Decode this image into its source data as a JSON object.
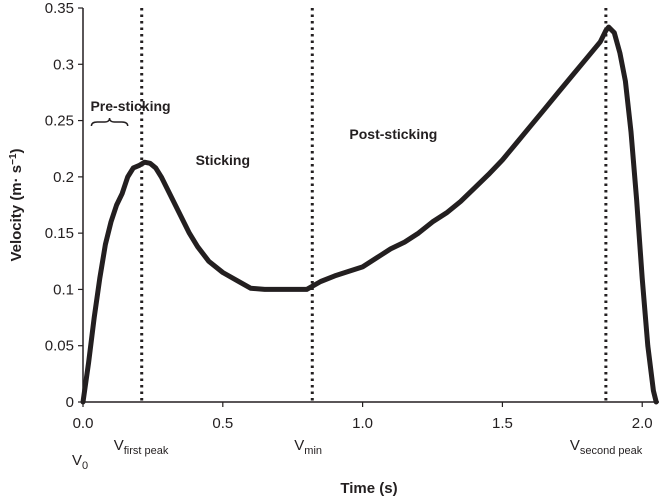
{
  "chart_data": {
    "type": "line",
    "title": "",
    "xlabel": "Time (s)",
    "ylabel": "Velocity (m· s",
    "ylabel_superscript": "−1",
    "ylabel_close": ")",
    "xlim": [
      0.0,
      2.06
    ],
    "ylim": [
      0.0,
      0.35
    ],
    "x_ticks": [
      0.0,
      0.5,
      1.0,
      1.5,
      2.0
    ],
    "x_tick_labels": [
      "0.0",
      "0.5",
      "1.0",
      "1.5",
      "2.0"
    ],
    "y_ticks": [
      0,
      0.05,
      0.1,
      0.15,
      0.2,
      0.25,
      0.3,
      0.35
    ],
    "y_tick_labels": [
      "0",
      "0.05",
      "0.1",
      "0.15",
      "0.2",
      "0.25",
      "0.3",
      "0.35"
    ],
    "grid": false,
    "legend": "none",
    "line_color": "#231f20",
    "series": [
      {
        "x": [
          0.0,
          0.02,
          0.04,
          0.06,
          0.08,
          0.1,
          0.12,
          0.14,
          0.16,
          0.18,
          0.2,
          0.22,
          0.24,
          0.26,
          0.28,
          0.3,
          0.32,
          0.35,
          0.38,
          0.41,
          0.45,
          0.5,
          0.55,
          0.6,
          0.65,
          0.7,
          0.75,
          0.8,
          0.85,
          0.9,
          0.95,
          1.0,
          1.05,
          1.1,
          1.15,
          1.2,
          1.25,
          1.3,
          1.35,
          1.4,
          1.45,
          1.5,
          1.55,
          1.6,
          1.65,
          1.7,
          1.75,
          1.8,
          1.85,
          1.87,
          1.88,
          1.9,
          1.92,
          1.94,
          1.96,
          1.98,
          2.0,
          2.02,
          2.04,
          2.05
        ],
        "y": [
          0.0,
          0.035,
          0.075,
          0.11,
          0.14,
          0.16,
          0.175,
          0.185,
          0.2,
          0.208,
          0.21,
          0.213,
          0.212,
          0.208,
          0.2,
          0.19,
          0.18,
          0.165,
          0.15,
          0.138,
          0.125,
          0.115,
          0.108,
          0.101,
          0.1,
          0.1,
          0.1,
          0.1,
          0.107,
          0.112,
          0.116,
          0.12,
          0.128,
          0.136,
          0.142,
          0.15,
          0.16,
          0.168,
          0.178,
          0.19,
          0.202,
          0.215,
          0.23,
          0.245,
          0.26,
          0.275,
          0.29,
          0.305,
          0.32,
          0.33,
          0.333,
          0.328,
          0.31,
          0.285,
          0.24,
          0.18,
          0.11,
          0.05,
          0.01,
          0.0
        ]
      }
    ],
    "markers": [
      {
        "x": 0.21,
        "label": "V",
        "sub": "first peak"
      },
      {
        "x": 0.82,
        "label": "V",
        "sub": "min"
      },
      {
        "x": 1.87,
        "label": "V",
        "sub": "second peak"
      }
    ],
    "v0_label": {
      "label": "V",
      "sub": "0"
    },
    "phases": [
      {
        "name": "Pre-sticking",
        "x": 0.17,
        "y": 0.263
      },
      {
        "name": "Sticking",
        "x": 0.5,
        "y": 0.215
      },
      {
        "name": "Post-sticking",
        "x": 1.11,
        "y": 0.238
      }
    ]
  }
}
